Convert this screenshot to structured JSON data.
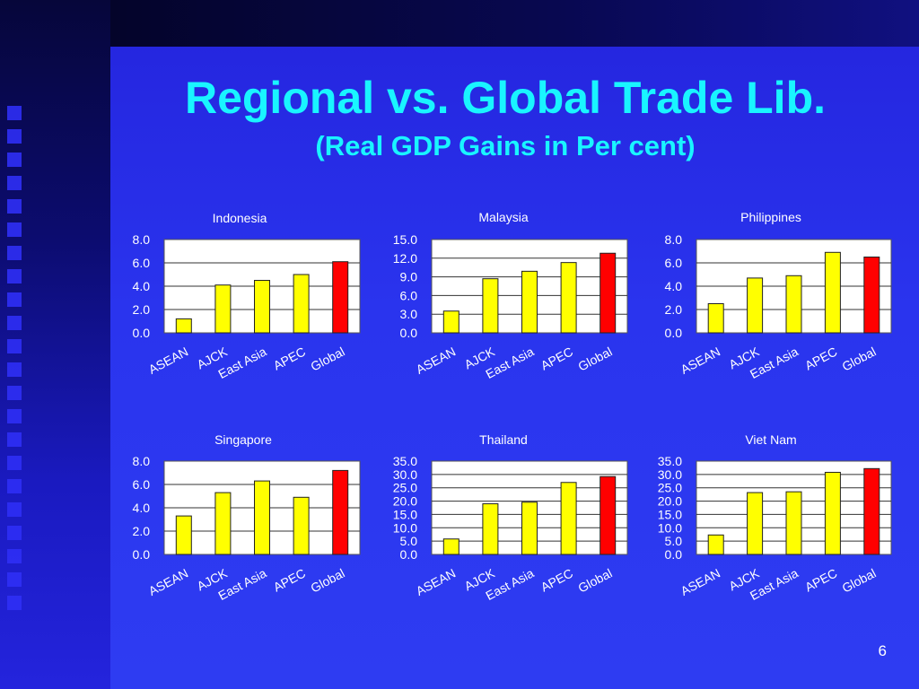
{
  "slide": {
    "title": "Regional vs. Global Trade Lib.",
    "subtitle": "(Real GDP Gains in Per cent)",
    "page_number": "6"
  },
  "colors": {
    "regional_bar": "#ffff00",
    "global_bar": "#ff0000",
    "title": "#19f5ff",
    "text": "#ffffff"
  },
  "chart_data": [
    {
      "type": "bar",
      "title": "Indonesia",
      "categories": [
        "ASEAN",
        "AJCK",
        "East Asia",
        "APEC",
        "Global"
      ],
      "values": [
        1.2,
        4.1,
        4.5,
        5.0,
        6.1
      ],
      "ylim": [
        0,
        8
      ],
      "yticks": [
        "0.0",
        "2.0",
        "4.0",
        "6.0",
        "8.0"
      ],
      "grid": true,
      "xlabel": "",
      "ylabel": ""
    },
    {
      "type": "bar",
      "title": "Malaysia",
      "categories": [
        "ASEAN",
        "AJCK",
        "East Asia",
        "APEC",
        "Global"
      ],
      "values": [
        3.5,
        8.7,
        9.9,
        11.3,
        12.8
      ],
      "ylim": [
        0,
        15
      ],
      "yticks": [
        "0.0",
        "3.0",
        "6.0",
        "9.0",
        "12.0",
        "15.0"
      ],
      "grid": true,
      "xlabel": "",
      "ylabel": ""
    },
    {
      "type": "bar",
      "title": "Philippines",
      "categories": [
        "ASEAN",
        "AJCK",
        "East Asia",
        "APEC",
        "Global"
      ],
      "values": [
        2.5,
        4.7,
        4.9,
        6.9,
        6.5
      ],
      "ylim": [
        0,
        8
      ],
      "yticks": [
        "0.0",
        "2.0",
        "4.0",
        "6.0",
        "8.0"
      ],
      "grid": true,
      "xlabel": "",
      "ylabel": ""
    },
    {
      "type": "bar",
      "title": "Singapore",
      "categories": [
        "ASEAN",
        "AJCK",
        "East Asia",
        "APEC",
        "Global"
      ],
      "values": [
        3.3,
        5.3,
        6.3,
        4.9,
        7.2
      ],
      "ylim": [
        0,
        8
      ],
      "yticks": [
        "0.0",
        "2.0",
        "4.0",
        "6.0",
        "8.0"
      ],
      "grid": true,
      "xlabel": "",
      "ylabel": ""
    },
    {
      "type": "bar",
      "title": "Thailand",
      "categories": [
        "ASEAN",
        "AJCK",
        "East Asia",
        "APEC",
        "Global"
      ],
      "values": [
        5.8,
        19.0,
        19.6,
        27.0,
        29.2
      ],
      "ylim": [
        0,
        35
      ],
      "yticks": [
        "0.0",
        "5.0",
        "10.0",
        "15.0",
        "20.0",
        "25.0",
        "30.0",
        "35.0"
      ],
      "grid": true,
      "xlabel": "",
      "ylabel": ""
    },
    {
      "type": "bar",
      "title": "Viet Nam",
      "categories": [
        "ASEAN",
        "AJCK",
        "East Asia",
        "APEC",
        "Global"
      ],
      "values": [
        7.3,
        23.2,
        23.5,
        30.8,
        32.2
      ],
      "ylim": [
        0,
        35
      ],
      "yticks": [
        "0.0",
        "5.0",
        "10.0",
        "15.0",
        "20.0",
        "25.0",
        "30.0",
        "35.0"
      ],
      "grid": true,
      "xlabel": "",
      "ylabel": ""
    }
  ]
}
